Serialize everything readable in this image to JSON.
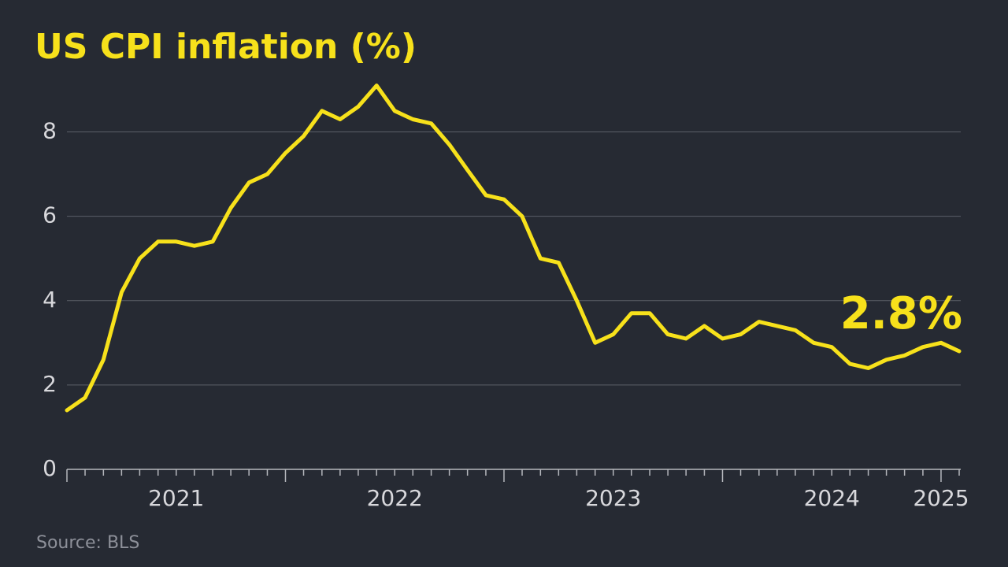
{
  "chart_data": {
    "type": "line",
    "title": "US CPI inflation (%)",
    "source": "Source: BLS",
    "annotation": "2.8%",
    "x": [
      2021,
      2021.083,
      2021.167,
      2021.25,
      2021.333,
      2021.417,
      2021.5,
      2021.583,
      2021.667,
      2021.75,
      2021.833,
      2021.917,
      2022,
      2022.083,
      2022.167,
      2022.25,
      2022.333,
      2022.417,
      2022.5,
      2022.583,
      2022.667,
      2022.75,
      2022.833,
      2022.917,
      2023,
      2023.083,
      2023.167,
      2023.25,
      2023.333,
      2023.417,
      2023.5,
      2023.583,
      2023.667,
      2023.75,
      2023.833,
      2023.917,
      2024,
      2024.083,
      2024.167,
      2024.25,
      2024.333,
      2024.417,
      2024.5,
      2024.583,
      2024.667,
      2024.75,
      2024.833,
      2024.917,
      2025,
      2025.083
    ],
    "series": [
      {
        "name": "US CPI inflation",
        "color": "#f7e11b",
        "values": [
          1.4,
          1.7,
          2.6,
          4.2,
          5.0,
          5.4,
          5.4,
          5.3,
          5.4,
          6.2,
          6.8,
          7.0,
          7.5,
          7.9,
          8.5,
          8.3,
          8.6,
          9.1,
          8.5,
          8.3,
          8.2,
          7.7,
          7.1,
          6.5,
          6.4,
          6.0,
          5.0,
          4.9,
          4.0,
          3.0,
          3.2,
          3.7,
          3.7,
          3.2,
          3.1,
          3.4,
          3.1,
          3.2,
          3.5,
          3.4,
          3.3,
          3.0,
          2.9,
          2.5,
          2.4,
          2.6,
          2.7,
          2.9,
          3.0,
          2.8
        ]
      }
    ],
    "xlim": [
      2021,
      2025.083
    ],
    "xticks": [
      {
        "value": 2021.5,
        "label": "2021"
      },
      {
        "value": 2022.5,
        "label": "2022"
      },
      {
        "value": 2023.5,
        "label": "2023"
      },
      {
        "value": 2024.5,
        "label": "2024"
      },
      2025
    ],
    "ylim": [
      0,
      9
    ],
    "yticks": [
      0,
      2,
      4,
      6,
      8
    ],
    "grid": true
  }
}
